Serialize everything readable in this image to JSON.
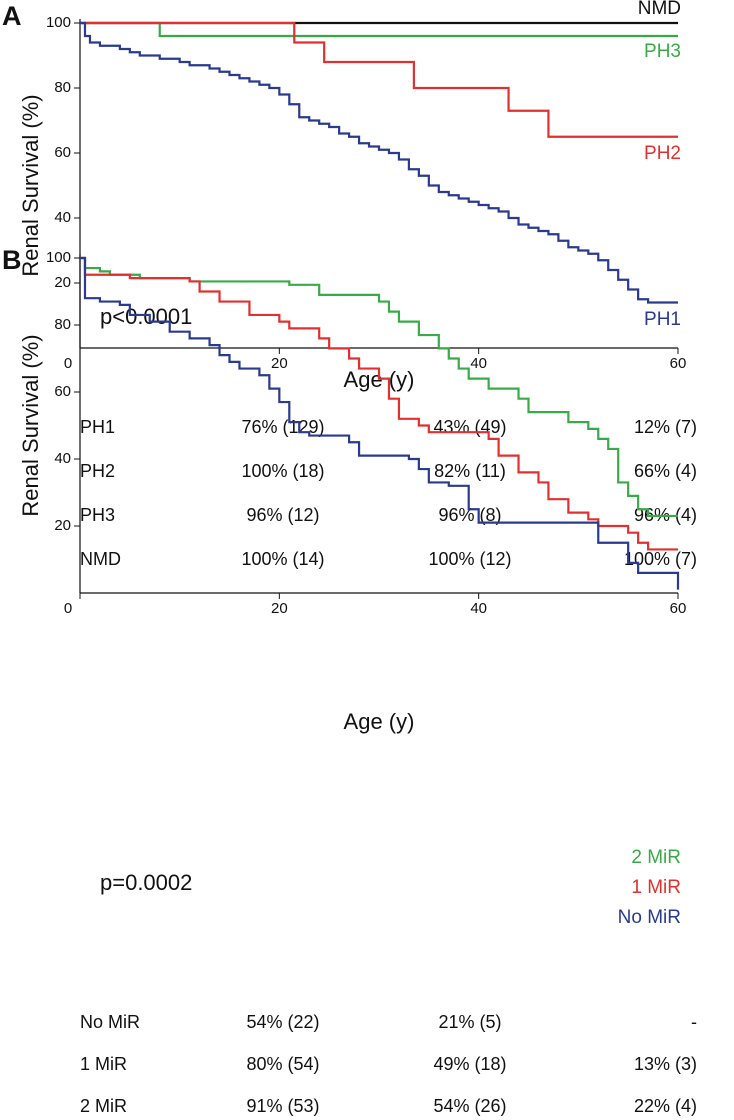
{
  "chart_data": [
    {
      "type": "line",
      "drawstyle": "steps-post",
      "panel": "A",
      "xlabel": "Age (y)",
      "ylabel": "Renal Survival (%)",
      "annotation": "p<0.0001",
      "xlim": [
        0,
        60
      ],
      "ylim": [
        0,
        100
      ],
      "xticks": [
        0,
        20,
        40,
        60
      ],
      "yticks": [
        20,
        40,
        60,
        80,
        100
      ],
      "series": [
        {
          "name": "NMD",
          "color": "#111111",
          "x": [
            0,
            60
          ],
          "values": [
            100,
            100
          ]
        },
        {
          "name": "PH3",
          "color": "#3aaa48",
          "x": [
            0,
            8,
            60
          ],
          "values": [
            100,
            96,
            96
          ]
        },
        {
          "name": "PH2",
          "color": "#e03030",
          "x": [
            0,
            21.5,
            24.5,
            33.5,
            43,
            47,
            60
          ],
          "values": [
            100,
            94,
            88,
            80,
            73,
            65,
            65
          ]
        },
        {
          "name": "PH1",
          "color": "#2a3a8f",
          "x": [
            0,
            0.5,
            1,
            2,
            4,
            5,
            6,
            8,
            10,
            11,
            13,
            14,
            15,
            16,
            17,
            18,
            19,
            20,
            21,
            22,
            23,
            24,
            25,
            26,
            27,
            28,
            29,
            30,
            31,
            32,
            33,
            34,
            35,
            36,
            37,
            38,
            39,
            40,
            41,
            42,
            43,
            44,
            45,
            46,
            47,
            48,
            49,
            50,
            51,
            52,
            53,
            54,
            55,
            56,
            57,
            60
          ],
          "values": [
            100,
            96,
            94,
            93,
            92,
            91,
            90,
            89,
            88,
            87,
            86,
            85,
            84,
            83,
            82,
            81,
            80,
            78,
            75,
            71,
            70,
            69,
            68,
            66,
            65,
            63,
            62,
            61,
            60,
            58,
            55,
            53,
            50,
            48,
            47,
            46,
            45,
            44,
            43,
            42,
            40,
            38,
            37,
            36,
            35,
            33,
            31,
            30,
            29,
            27,
            24,
            21,
            18,
            15,
            14,
            14
          ]
        }
      ],
      "table": {
        "rows": [
          [
            "PH1",
            "76% (129)",
            "43% (49)",
            "12% (7)"
          ],
          [
            "PH2",
            "100% (18)",
            "82% (11)",
            "66% (4)"
          ],
          [
            "PH3",
            "96% (12)",
            "96% (8)",
            "96% (4)"
          ],
          [
            "NMD",
            "100% (14)",
            "100% (12)",
            "100% (7)"
          ]
        ]
      }
    },
    {
      "type": "line",
      "drawstyle": "steps-post",
      "panel": "B",
      "xlabel": "Age (y)",
      "ylabel": "Renal Survival (%)",
      "annotation": "p=0.0002",
      "xlim": [
        0,
        60
      ],
      "ylim": [
        0,
        100
      ],
      "xticks": [
        0,
        20,
        40,
        60
      ],
      "yticks": [
        20,
        40,
        60,
        80,
        100
      ],
      "series": [
        {
          "name": "2 MiR",
          "color": "#3aaa48",
          "x": [
            0,
            0.5,
            2,
            3,
            6,
            11,
            21,
            24,
            30,
            31,
            32,
            34,
            36,
            37,
            38,
            39,
            41,
            44,
            45,
            49,
            51,
            52,
            53,
            54,
            55,
            56,
            57,
            60
          ],
          "values": [
            100,
            97,
            96,
            95,
            94,
            93,
            92,
            89,
            87,
            84,
            81,
            77,
            73,
            70,
            67,
            64,
            61,
            58,
            54,
            51,
            49,
            46,
            43,
            33,
            29,
            25,
            23,
            23
          ]
        },
        {
          "name": "1 MiR",
          "color": "#e03030",
          "x": [
            0,
            0.5,
            5,
            11,
            12,
            14,
            17,
            20,
            21,
            24,
            25,
            27,
            28,
            30,
            31,
            32,
            34,
            35,
            41,
            42,
            44,
            46,
            47,
            49,
            51,
            52,
            55,
            56,
            57,
            60
          ],
          "values": [
            100,
            95,
            94,
            93,
            90,
            87,
            83,
            81,
            79,
            76,
            73,
            70,
            67,
            64,
            58,
            52,
            50,
            48,
            46,
            41,
            36,
            33,
            28,
            24,
            22,
            20,
            18,
            15,
            13,
            13
          ]
        },
        {
          "name": "No MiR",
          "color": "#2a3a8f",
          "x": [
            0,
            0.5,
            2,
            4,
            5,
            7,
            9,
            11,
            13,
            14,
            15,
            16,
            18,
            19,
            20,
            21,
            22,
            23,
            27,
            28,
            33,
            34,
            35,
            37,
            39,
            40,
            52,
            55,
            56,
            59,
            60
          ],
          "values": [
            100,
            88,
            87,
            86,
            83,
            81,
            78,
            76,
            74,
            71,
            69,
            67,
            65,
            61,
            57,
            51,
            48,
            47,
            45,
            41,
            40,
            37,
            33,
            32,
            25,
            21,
            15,
            9,
            6,
            6,
            1
          ]
        }
      ],
      "table": {
        "rows": [
          [
            "No MiR",
            "54% (22)",
            "21% (5)",
            "-"
          ],
          [
            "1 MiR",
            "80% (54)",
            "49% (18)",
            "13% (3)"
          ],
          [
            "2 MiR",
            "91% (53)",
            "54% (26)",
            "22% (4)"
          ]
        ]
      }
    }
  ]
}
